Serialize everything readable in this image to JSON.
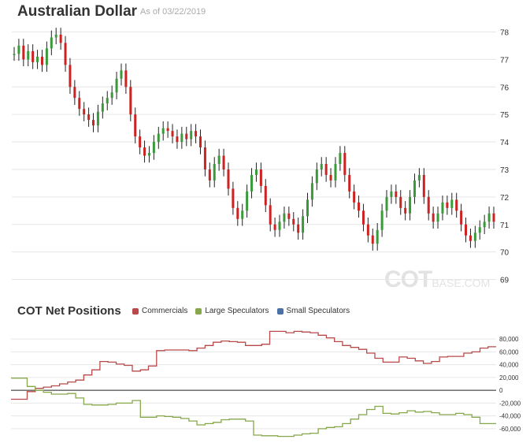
{
  "header": {
    "title": "Australian Dollar",
    "subtitle": "As of 03/22/2019"
  },
  "cot": {
    "title": "COT Net Positions",
    "legend": [
      {
        "label": "Commercials",
        "color": "#b84a4a"
      },
      {
        "label": "Large Speculators",
        "color": "#86a84a"
      },
      {
        "label": "Small Speculators",
        "color": "#4a72a8"
      }
    ]
  },
  "watermark": {
    "big": "COT",
    "small": "BASE.COM"
  },
  "colors": {
    "up": "#3a9a3a",
    "down": "#cc2222",
    "wick": "#222222",
    "grid": "#e6e6e6"
  },
  "chart_data": [
    {
      "type": "line",
      "title": "Australian Dollar",
      "ylim": [
        68.5,
        78.3
      ],
      "yticks": [
        69,
        70,
        71,
        72,
        73,
        74,
        75,
        76,
        77,
        78
      ],
      "grid": true,
      "series": [
        {
          "values": [
            77.2,
            77.5,
            77.0,
            77.3,
            76.9,
            77.1,
            76.8,
            77.4,
            77.8,
            77.9,
            77.6,
            76.8,
            76.0,
            75.6,
            75.2,
            75.0,
            74.8,
            74.6,
            75.1,
            75.4,
            75.6,
            75.8,
            76.3,
            76.6,
            76.0,
            75.0,
            74.2,
            73.8,
            73.5,
            73.6,
            74.0,
            74.3,
            74.5,
            74.4,
            74.2,
            74.0,
            74.3,
            74.1,
            74.4,
            74.2,
            73.8,
            73.0,
            72.6,
            73.2,
            73.5,
            73.0,
            72.3,
            71.6,
            71.2,
            71.5,
            72.2,
            72.8,
            73.0,
            72.4,
            71.7,
            71.0,
            70.8,
            71.1,
            71.4,
            71.2,
            71.0,
            70.7,
            71.3,
            71.9,
            72.5,
            73.0,
            73.2,
            72.8,
            72.6,
            73.2,
            73.6,
            72.8,
            72.2,
            71.8,
            71.5,
            71.0,
            70.6,
            70.3,
            70.8,
            71.5,
            72.0,
            72.2,
            72.0,
            71.6,
            71.4,
            72.0,
            72.6,
            72.8,
            72.0,
            71.4,
            71.1,
            71.4,
            71.8,
            71.6,
            71.9,
            71.5,
            71.0,
            70.6,
            70.4,
            70.7,
            70.9,
            71.1,
            71.4,
            71.1
          ]
        }
      ]
    },
    {
      "type": "line",
      "title": "COT Net Positions",
      "ylim": [
        -70000,
        95000
      ],
      "yticks": [
        -60000,
        -40000,
        -20000,
        0,
        20000,
        40000,
        60000,
        80000
      ],
      "ytick_labels": [
        "-60,000",
        "-40,000",
        "-20,000",
        "0",
        "20,000",
        "40,000",
        "60,000",
        "80,000"
      ],
      "series": [
        {
          "name": "Commercials",
          "color": "#b84a4a",
          "values": [
            -14000,
            -14000,
            -2000,
            3000,
            5000,
            7000,
            10000,
            13000,
            16000,
            24000,
            32000,
            45000,
            44000,
            41000,
            39000,
            30000,
            32000,
            38000,
            62000,
            63000,
            63000,
            63000,
            62000,
            66000,
            70000,
            75000,
            77000,
            76000,
            75000,
            70000,
            70000,
            72000,
            92000,
            92000,
            90000,
            92000,
            91000,
            90000,
            86000,
            82000,
            76000,
            70000,
            67000,
            64000,
            58000,
            50000,
            44000,
            44000,
            52000,
            50000,
            46000,
            42000,
            45000,
            52000,
            53000,
            53000,
            58000,
            60000,
            66000,
            68000
          ]
        },
        {
          "name": "Large Speculators",
          "color": "#86a84a",
          "values": [
            19000,
            19000,
            6000,
            0,
            -3000,
            -6000,
            -6000,
            -5000,
            -12000,
            -22000,
            -23000,
            -23000,
            -22000,
            -20000,
            -20000,
            -16000,
            -42000,
            -42000,
            -40000,
            -41000,
            -42000,
            -44000,
            -48000,
            -54000,
            -52000,
            -50000,
            -46000,
            -45000,
            -45000,
            -48000,
            -70000,
            -71000,
            -71000,
            -72000,
            -72000,
            -70000,
            -68000,
            -67000,
            -60000,
            -58000,
            -57000,
            -52000,
            -45000,
            -38000,
            -30000,
            -25000,
            -36000,
            -37000,
            -35000,
            -32000,
            -34000,
            -33000,
            -35000,
            -38000,
            -38000,
            -36000,
            -38000,
            -42000,
            -52000,
            -52000
          ]
        }
      ]
    }
  ]
}
